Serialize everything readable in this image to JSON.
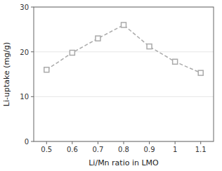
{
  "chart_data": {
    "type": "line",
    "xlabel": "Li/Mn ratio in LMO",
    "ylabel": "Li-uptake (mg/g)",
    "x": [
      0.5,
      0.6,
      0.7,
      0.8,
      0.9,
      1.0,
      1.1
    ],
    "values": [
      16.0,
      19.8,
      23.0,
      26.0,
      21.2,
      17.8,
      15.3
    ],
    "color": "#aaaaaa",
    "marker": "square",
    "line_style": "dashed",
    "xlim": [
      0.45,
      1.15
    ],
    "ylim": [
      0,
      30
    ],
    "xticks": [
      0.5,
      0.6,
      0.7,
      0.8,
      0.9,
      1.0,
      1.1
    ],
    "yticks": [
      0,
      10,
      20,
      30
    ]
  }
}
